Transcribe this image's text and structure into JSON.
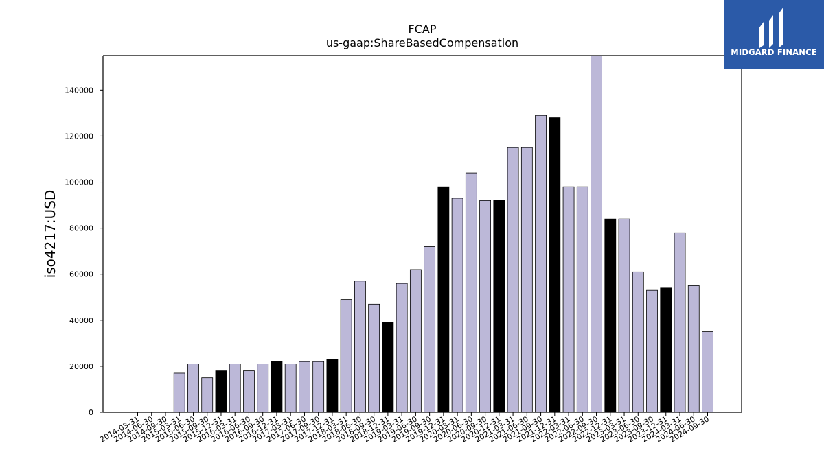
{
  "chart_data": {
    "type": "bar",
    "title": "FCAP",
    "subtitle": "us-gaap:ShareBasedCompensation",
    "ylabel": "iso4217:USD",
    "xlabel": "",
    "ylim": [
      0,
      155000
    ],
    "yticks": [
      0,
      20000,
      40000,
      60000,
      80000,
      100000,
      120000,
      140000
    ],
    "grid": false,
    "categories": [
      "2014-03-31",
      "2014-06-30",
      "2014-09-30",
      "2015-03-31",
      "2015-06-30",
      "2015-09-30",
      "2015-12-31",
      "2016-03-31",
      "2016-06-30",
      "2016-09-30",
      "2016-12-31",
      "2017-03-31",
      "2017-06-30",
      "2017-09-30",
      "2017-12-31",
      "2018-03-31",
      "2018-06-30",
      "2018-09-30",
      "2018-12-31",
      "2019-03-31",
      "2019-06-30",
      "2019-09-30",
      "2019-12-31",
      "2020-03-31",
      "2020-06-30",
      "2020-09-30",
      "2020-12-31",
      "2021-03-31",
      "2021-06-30",
      "2021-09-30",
      "2021-12-31",
      "2022-03-31",
      "2022-06-30",
      "2022-09-30",
      "2022-12-31",
      "2023-03-31",
      "2023-06-30",
      "2023-09-30",
      "2023-12-31",
      "2024-03-31",
      "2024-06-30",
      "2024-09-30"
    ],
    "values": [
      0,
      0,
      0,
      17000,
      21000,
      15000,
      18000,
      21000,
      18000,
      21000,
      22000,
      21000,
      22000,
      22000,
      23000,
      49000,
      57000,
      47000,
      39000,
      56000,
      62000,
      72000,
      98000,
      93000,
      104000,
      92000,
      92000,
      115000,
      115000,
      129000,
      128000,
      98000,
      98000,
      155000,
      84000,
      84000,
      61000,
      53000,
      54000,
      78000,
      55000,
      35000
    ],
    "highlighted": [
      "2015-12-31",
      "2016-12-31",
      "2017-12-31",
      "2018-12-31",
      "2019-12-31",
      "2020-12-31",
      "2021-12-31",
      "2022-12-31",
      "2023-12-31"
    ],
    "colors": {
      "bar": "#bcb8d8",
      "highlight": "#000000",
      "edge": "#000000"
    }
  },
  "logo": {
    "text": "MIDGARD FINANCE",
    "background": "#2b5aa8"
  }
}
